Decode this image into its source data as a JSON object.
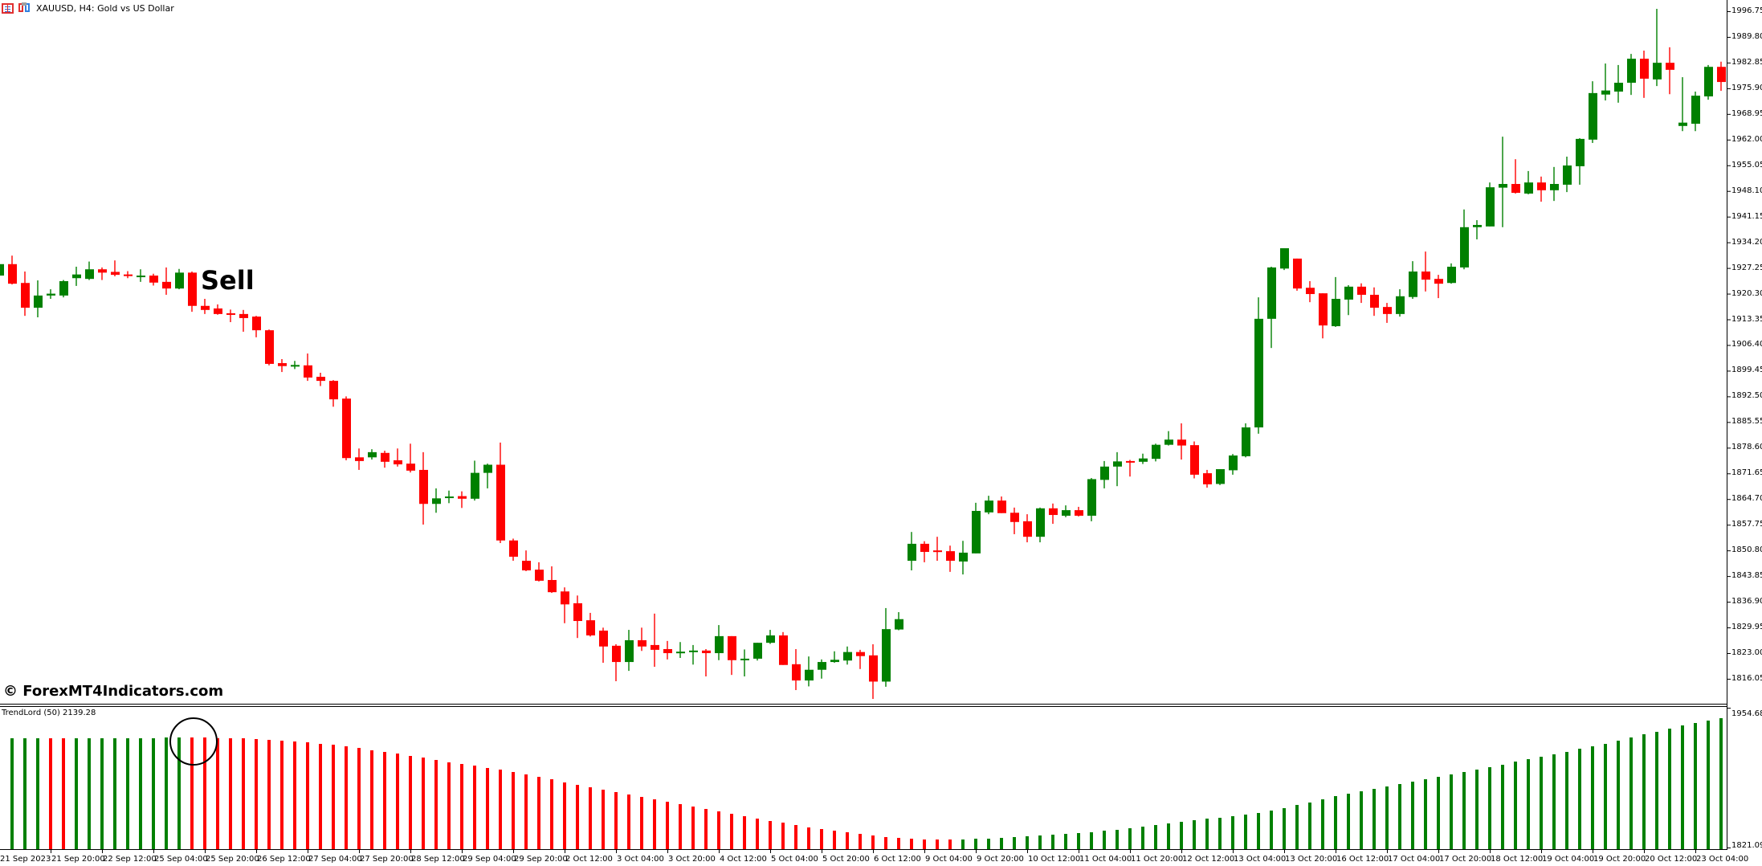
{
  "window": {
    "symbol_title": "XAUUSD, H4:  Gold vs US Dollar"
  },
  "annotations": {
    "signal_label": "Sell",
    "watermark": "© ForexMT4Indicators.com"
  },
  "indicator": {
    "title": "TrendLord (50) 2139.28",
    "scale_max_label": "1954.68",
    "scale_min_label": "1821.09",
    "scale_max": 1954.68,
    "scale_min": 1821.09
  },
  "colors": {
    "bull": "#008000",
    "bear": "#ff0000",
    "axis": "#000000",
    "background": "#ffffff"
  },
  "price_axis": {
    "labels": [
      "1996.75",
      "1989.80",
      "1982.85",
      "1975.90",
      "1968.95",
      "1962.00",
      "1955.05",
      "1948.10",
      "1941.15",
      "1934.20",
      "1927.25",
      "1920.30",
      "1913.35",
      "1906.40",
      "1899.45",
      "1892.50",
      "1885.55",
      "1878.60",
      "1871.65",
      "1864.70",
      "1857.75",
      "1850.80",
      "1843.85",
      "1836.90",
      "1829.95",
      "1823.00",
      "1816.05"
    ]
  },
  "time_axis": {
    "labels": [
      "21 Sep 2023",
      "21 Sep 20:00",
      "22 Sep 12:00",
      "25 Sep 04:00",
      "25 Sep 20:00",
      "26 Sep 12:00",
      "27 Sep 04:00",
      "27 Sep 20:00",
      "28 Sep 12:00",
      "29 Sep 04:00",
      "29 Sep 20:00",
      "2 Oct 12:00",
      "3 Oct 04:00",
      "3 Oct 20:00",
      "4 Oct 12:00",
      "5 Oct 04:00",
      "5 Oct 20:00",
      "6 Oct 12:00",
      "9 Oct 04:00",
      "9 Oct 20:00",
      "10 Oct 12:00",
      "11 Oct 04:00",
      "11 Oct 20:00",
      "12 Oct 12:00",
      "13 Oct 04:00",
      "13 Oct 20:00",
      "16 Oct 12:00",
      "17 Oct 04:00",
      "17 Oct 20:00",
      "18 Oct 12:00",
      "19 Oct 04:00",
      "19 Oct 20:00",
      "20 Oct 12:00",
      "23 Oct 04:00"
    ]
  },
  "chart_data": {
    "type": "candlestick",
    "title": "XAUUSD, H4: Gold vs US Dollar",
    "ylim": [
      1816.05,
      1996.75
    ],
    "ohlc": [
      [
        1925.2,
        1928.8,
        1925.0,
        1928.3
      ],
      [
        1928.3,
        1930.6,
        1922.8,
        1923.0
      ],
      [
        1923.2,
        1926.3,
        1914.3,
        1916.5
      ],
      [
        1916.5,
        1923.9,
        1913.9,
        1919.8
      ],
      [
        1919.8,
        1921.5,
        1918.9,
        1920.3
      ],
      [
        1919.8,
        1924.0,
        1919.3,
        1923.7
      ],
      [
        1924.5,
        1927.6,
        1922.4,
        1925.5
      ],
      [
        1924.3,
        1929.0,
        1924.0,
        1926.9
      ],
      [
        1926.9,
        1927.4,
        1924.0,
        1926.0
      ],
      [
        1926.2,
        1929.3,
        1925.0,
        1925.4
      ],
      [
        1925.5,
        1926.4,
        1924.5,
        1925.2
      ],
      [
        1924.8,
        1926.9,
        1923.5,
        1925.2
      ],
      [
        1925.2,
        1925.7,
        1922.5,
        1923.3
      ],
      [
        1923.5,
        1927.4,
        1920.0,
        1921.7
      ],
      [
        1921.7,
        1927.0,
        1921.5,
        1926.0
      ],
      [
        1926.0,
        1926.3,
        1915.4,
        1917.0
      ],
      [
        1917.0,
        1918.9,
        1914.8,
        1915.9
      ],
      [
        1916.3,
        1917.4,
        1914.6,
        1914.8
      ],
      [
        1915.0,
        1916.0,
        1912.6,
        1914.8
      ],
      [
        1914.8,
        1915.9,
        1910.0,
        1913.7
      ],
      [
        1914.1,
        1914.3,
        1908.5,
        1910.4
      ],
      [
        1910.4,
        1910.6,
        1900.9,
        1901.3
      ],
      [
        1901.5,
        1902.6,
        1899.1,
        1900.7
      ],
      [
        1900.7,
        1902.1,
        1899.9,
        1901.0
      ],
      [
        1900.9,
        1904.1,
        1896.7,
        1897.6
      ],
      [
        1897.8,
        1898.9,
        1895.3,
        1896.7
      ],
      [
        1896.7,
        1896.9,
        1889.7,
        1891.7
      ],
      [
        1891.9,
        1892.5,
        1875.2,
        1875.8
      ],
      [
        1876.0,
        1878.4,
        1872.6,
        1875.0
      ],
      [
        1876.0,
        1878.2,
        1875.4,
        1877.4
      ],
      [
        1877.2,
        1877.8,
        1873.2,
        1874.8
      ],
      [
        1875.2,
        1878.4,
        1873.5,
        1874.1
      ],
      [
        1874.3,
        1879.7,
        1871.9,
        1872.4
      ],
      [
        1872.6,
        1877.4,
        1857.8,
        1863.4
      ],
      [
        1863.4,
        1867.6,
        1861.0,
        1864.9
      ],
      [
        1865.1,
        1867.0,
        1863.6,
        1865.4
      ],
      [
        1865.5,
        1866.8,
        1862.3,
        1864.8
      ],
      [
        1864.8,
        1875.1,
        1864.3,
        1871.8
      ],
      [
        1871.8,
        1874.3,
        1867.6,
        1874.0
      ],
      [
        1874.0,
        1880.0,
        1852.8,
        1853.5
      ],
      [
        1853.5,
        1854.0,
        1848.0,
        1849.1
      ],
      [
        1848.0,
        1850.8,
        1845.2,
        1845.4
      ],
      [
        1845.6,
        1847.6,
        1842.4,
        1842.6
      ],
      [
        1842.8,
        1846.5,
        1839.3,
        1839.5
      ],
      [
        1839.7,
        1840.8,
        1831.1,
        1836.2
      ],
      [
        1836.5,
        1838.6,
        1827.1,
        1831.7
      ],
      [
        1831.9,
        1833.9,
        1827.5,
        1827.8
      ],
      [
        1829.1,
        1829.9,
        1820.4,
        1824.8
      ],
      [
        1825.0,
        1825.4,
        1815.4,
        1820.6
      ],
      [
        1820.6,
        1829.3,
        1818.2,
        1826.5
      ],
      [
        1826.5,
        1829.9,
        1823.6,
        1824.8
      ],
      [
        1825.2,
        1833.7,
        1819.3,
        1823.9
      ],
      [
        1824.1,
        1826.3,
        1821.3,
        1823.0
      ],
      [
        1823.0,
        1826.0,
        1821.7,
        1823.4
      ],
      [
        1823.4,
        1825.2,
        1819.9,
        1823.7
      ],
      [
        1823.7,
        1824.1,
        1816.7,
        1823.0
      ],
      [
        1823.0,
        1830.6,
        1821.1,
        1827.6
      ],
      [
        1827.6,
        1827.6,
        1817.1,
        1821.1
      ],
      [
        1821.1,
        1824.0,
        1816.7,
        1821.5
      ],
      [
        1821.5,
        1825.8,
        1821.0,
        1825.8
      ],
      [
        1825.8,
        1829.3,
        1825.5,
        1827.8
      ],
      [
        1827.8,
        1828.7,
        1819.8,
        1819.8
      ],
      [
        1820.0,
        1824.1,
        1813.0,
        1815.6
      ],
      [
        1815.6,
        1822.1,
        1814.0,
        1818.5
      ],
      [
        1818.5,
        1821.3,
        1816.1,
        1820.6
      ],
      [
        1820.6,
        1823.5,
        1820.4,
        1821.2
      ],
      [
        1821.0,
        1824.8,
        1819.9,
        1823.3
      ],
      [
        1823.3,
        1823.9,
        1818.7,
        1822.2
      ],
      [
        1822.4,
        1825.4,
        1810.6,
        1815.3
      ],
      [
        1815.3,
        1835.2,
        1813.9,
        1829.5
      ],
      [
        1829.4,
        1834.1,
        1829.2,
        1832.2
      ],
      [
        1848.0,
        1855.8,
        1845.4,
        1852.6
      ],
      [
        1852.6,
        1853.3,
        1847.6,
        1850.4
      ],
      [
        1850.8,
        1854.5,
        1848.0,
        1850.6
      ],
      [
        1850.6,
        1852.1,
        1845.0,
        1848.0
      ],
      [
        1847.8,
        1853.4,
        1844.3,
        1850.2
      ],
      [
        1850.0,
        1863.7,
        1850.0,
        1861.5
      ],
      [
        1861.1,
        1865.6,
        1860.6,
        1864.3
      ],
      [
        1864.3,
        1865.4,
        1860.9,
        1860.9
      ],
      [
        1861.0,
        1862.4,
        1855.2,
        1858.5
      ],
      [
        1858.7,
        1860.6,
        1853.0,
        1854.5
      ],
      [
        1854.5,
        1862.4,
        1853.0,
        1862.2
      ],
      [
        1862.2,
        1863.5,
        1858.0,
        1860.4
      ],
      [
        1860.2,
        1863.0,
        1859.8,
        1861.7
      ],
      [
        1861.7,
        1862.6,
        1860.0,
        1860.2
      ],
      [
        1860.2,
        1870.4,
        1858.7,
        1870.1
      ],
      [
        1869.9,
        1875.0,
        1867.6,
        1873.5
      ],
      [
        1873.5,
        1877.4,
        1868.2,
        1874.9
      ],
      [
        1875.0,
        1875.3,
        1870.8,
        1874.8
      ],
      [
        1874.8,
        1877.0,
        1874.2,
        1875.7
      ],
      [
        1875.6,
        1879.7,
        1874.9,
        1879.4
      ],
      [
        1879.4,
        1883.1,
        1879.2,
        1880.8
      ],
      [
        1880.8,
        1885.2,
        1875.4,
        1879.2
      ],
      [
        1879.3,
        1880.3,
        1870.3,
        1871.3
      ],
      [
        1871.7,
        1872.6,
        1867.8,
        1868.7
      ],
      [
        1868.8,
        1872.8,
        1868.5,
        1872.8
      ],
      [
        1872.5,
        1876.9,
        1871.3,
        1876.5
      ],
      [
        1876.3,
        1885.2,
        1876.0,
        1884.1
      ],
      [
        1884.1,
        1919.3,
        1882.4,
        1913.5
      ],
      [
        1913.5,
        1927.6,
        1905.6,
        1927.4
      ],
      [
        1927.1,
        1932.6,
        1926.7,
        1932.6
      ],
      [
        1929.8,
        1929.8,
        1921.1,
        1921.7
      ],
      [
        1921.9,
        1923.7,
        1918.0,
        1920.2
      ],
      [
        1920.4,
        1920.4,
        1908.2,
        1911.7
      ],
      [
        1911.5,
        1924.8,
        1911.3,
        1918.9
      ],
      [
        1918.7,
        1922.6,
        1914.5,
        1922.2
      ],
      [
        1922.2,
        1923.1,
        1917.8,
        1920.0
      ],
      [
        1920.0,
        1922.0,
        1914.3,
        1916.5
      ],
      [
        1916.7,
        1917.8,
        1912.4,
        1914.8
      ],
      [
        1914.8,
        1921.5,
        1914.1,
        1919.6
      ],
      [
        1919.4,
        1929.1,
        1918.9,
        1926.3
      ],
      [
        1926.3,
        1931.7,
        1920.9,
        1924.1
      ],
      [
        1924.3,
        1925.4,
        1919.1,
        1923.0
      ],
      [
        1923.2,
        1928.5,
        1923.0,
        1927.6
      ],
      [
        1927.4,
        1943.1,
        1926.9,
        1938.3
      ],
      [
        1938.3,
        1940.2,
        1935.0,
        1938.9
      ],
      [
        1938.5,
        1950.4,
        1938.5,
        1949.1
      ],
      [
        1949.0,
        1962.8,
        1938.3,
        1950.0
      ],
      [
        1950.0,
        1956.7,
        1947.4,
        1947.6
      ],
      [
        1947.4,
        1953.5,
        1947.2,
        1950.4
      ],
      [
        1950.4,
        1952.0,
        1945.2,
        1948.3
      ],
      [
        1948.3,
        1954.6,
        1945.4,
        1950.0
      ],
      [
        1949.8,
        1957.4,
        1947.8,
        1955.0
      ],
      [
        1954.8,
        1962.4,
        1949.8,
        1962.2
      ],
      [
        1962.0,
        1977.8,
        1961.1,
        1974.6
      ],
      [
        1974.2,
        1982.6,
        1972.6,
        1975.3
      ],
      [
        1975.0,
        1982.2,
        1972.0,
        1977.4
      ],
      [
        1977.4,
        1985.2,
        1974.1,
        1983.9
      ],
      [
        1983.9,
        1986.1,
        1973.3,
        1978.5
      ],
      [
        1978.3,
        1997.4,
        1976.5,
        1982.8
      ],
      [
        1982.8,
        1987.0,
        1974.3,
        1980.9
      ],
      [
        1965.7,
        1978.9,
        1964.3,
        1966.6
      ],
      [
        1966.3,
        1975.0,
        1964.3,
        1973.9
      ],
      [
        1973.7,
        1982.2,
        1972.8,
        1981.7
      ],
      [
        1981.7,
        1983.1,
        1975.2,
        1977.6
      ]
    ],
    "indicator_series": {
      "name": "TrendLord (50)",
      "type": "histogram",
      "values": [
        1927.34,
        1927.34,
        1927.34,
        1927.34,
        1927.34,
        1927.34,
        1927.34,
        1927.34,
        1927.34,
        1927.34,
        1927.34,
        1927.34,
        1927.34,
        1928.12,
        1928.12,
        1928.12,
        1928.12,
        1927.5,
        1927.34,
        1927.34,
        1926.56,
        1925.78,
        1925.0,
        1924.21,
        1923.43,
        1921.87,
        1921.09,
        1919.53,
        1917.96,
        1915.62,
        1914.06,
        1912.5,
        1910.15,
        1908.59,
        1906.25,
        1903.9,
        1902.34,
        1900.78,
        1898.43,
        1896.87,
        1894.53,
        1892.18,
        1889.84,
        1887.5,
        1884.37,
        1882.03,
        1879.68,
        1877.34,
        1875.0,
        1872.65,
        1870.31,
        1867.96,
        1865.62,
        1863.28,
        1860.93,
        1858.59,
        1856.25,
        1853.9,
        1851.56,
        1849.21,
        1846.87,
        1845.31,
        1842.96,
        1840.62,
        1839.06,
        1837.5,
        1835.93,
        1834.37,
        1832.81,
        1831.25,
        1830.46,
        1829.68,
        1828.9,
        1828.9,
        1828.9,
        1828.9,
        1829.68,
        1829.68,
        1830.46,
        1831.25,
        1832.03,
        1832.81,
        1833.59,
        1834.37,
        1835.15,
        1835.93,
        1837.5,
        1838.28,
        1839.84,
        1841.4,
        1842.96,
        1844.53,
        1846.09,
        1847.65,
        1849.21,
        1850.0,
        1851.56,
        1853.12,
        1854.68,
        1857.03,
        1859.37,
        1862.5,
        1864.84,
        1867.96,
        1871.09,
        1873.43,
        1875.78,
        1878.12,
        1880.46,
        1882.81,
        1885.15,
        1887.5,
        1889.84,
        1892.18,
        1894.53,
        1896.87,
        1899.21,
        1901.56,
        1904.68,
        1907.03,
        1909.37,
        1911.71,
        1914.06,
        1917.18,
        1919.53,
        1921.87,
        1925.0,
        1928.12,
        1931.25,
        1933.59,
        1936.71,
        1939.84,
        1942.18,
        1944.53,
        1946.87
      ],
      "colors": "G:1-3,R:4-5,G:6-14,R:15-74,G:75-134"
    }
  }
}
